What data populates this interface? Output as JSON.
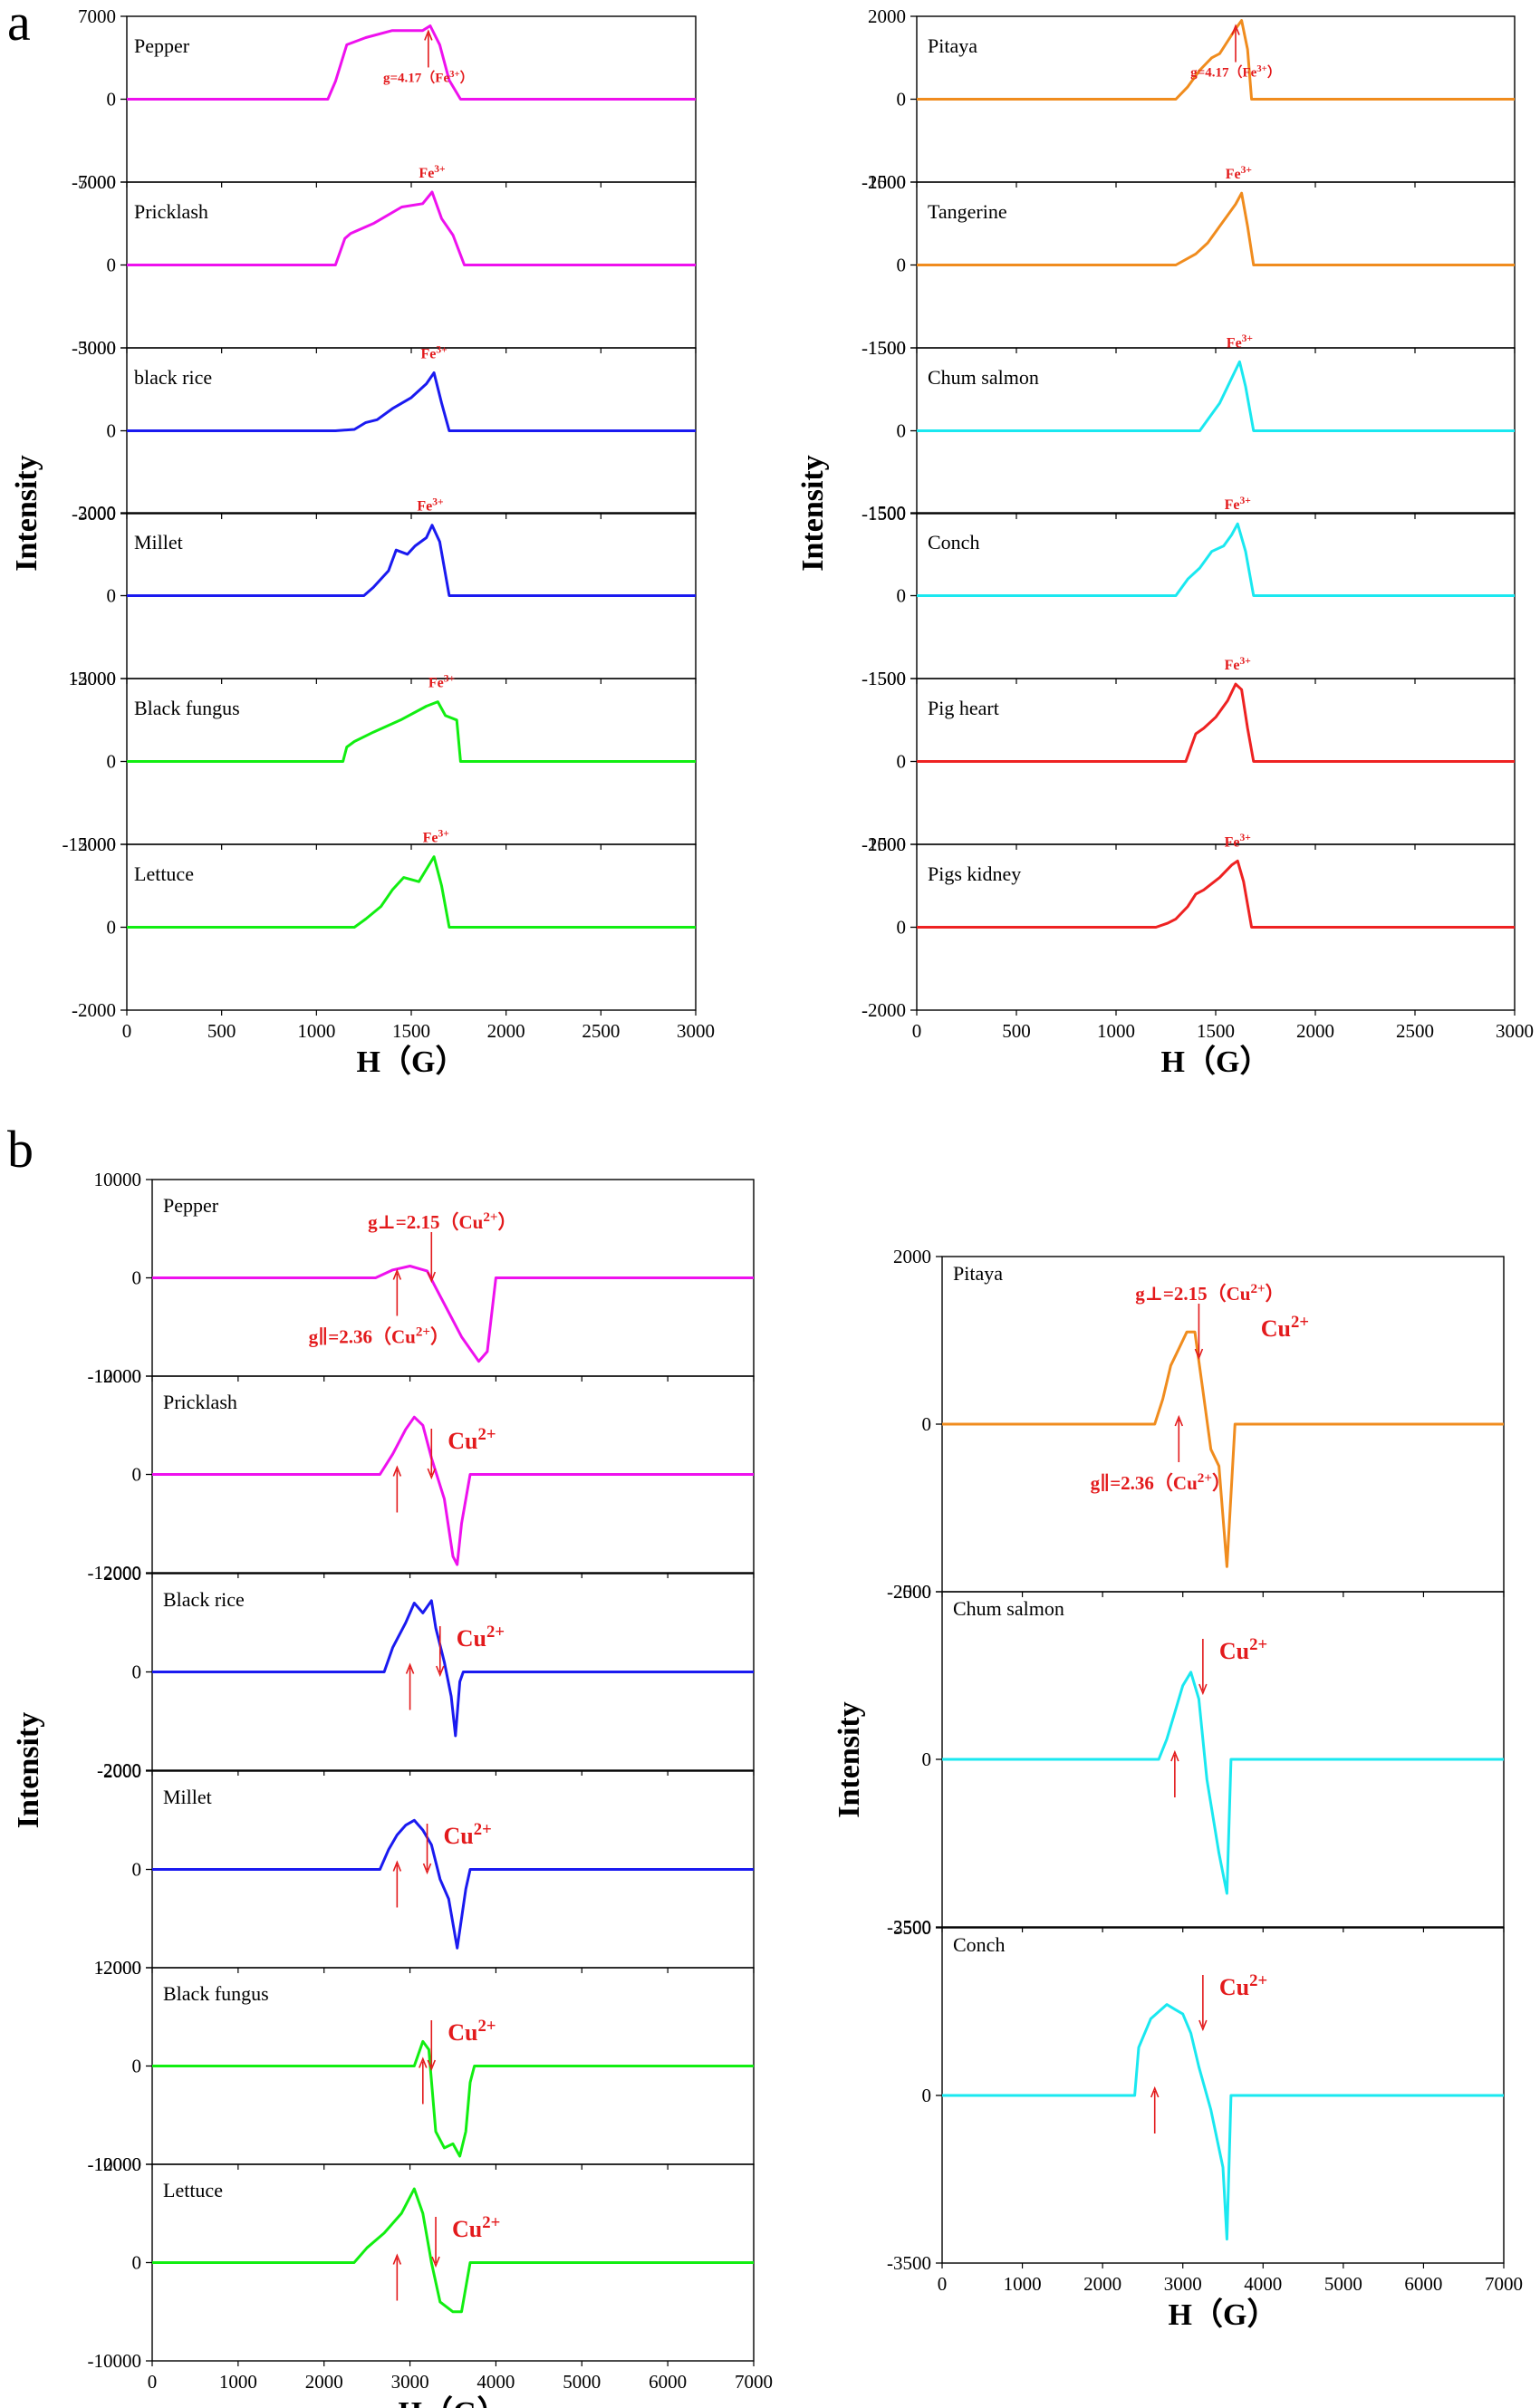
{
  "figure": {
    "panel_a_letter": "a",
    "panel_b_letter": "b"
  },
  "chart_data": [
    {
      "id": "a_left",
      "type": "line",
      "xlabel": "H（G）",
      "ylabel": "Intensity",
      "xlim": [
        0,
        3000
      ],
      "xticks": [
        0,
        500,
        1000,
        1500,
        2000,
        2500,
        3000
      ],
      "series": [
        {
          "name": "Pepper",
          "color": "#ee11ee",
          "ylim": [
            -7000,
            7000
          ],
          "yticks": [
            -7000,
            0,
            7000
          ],
          "x": [
            0,
            1060,
            1100,
            1160,
            1260,
            1400,
            1560,
            1600,
            1650,
            1700,
            1760,
            3000
          ],
          "y": [
            0,
            0,
            1500,
            4600,
            5200,
            5800,
            5800,
            6200,
            4600,
            1600,
            0,
            0
          ],
          "annotation": "g=4.17（Fe3+）",
          "arrow_x": 1590
        },
        {
          "name": "Pricklash",
          "color": "#ee11ee",
          "ylim": [
            -5000,
            5000
          ],
          "yticks": [
            -5000,
            0,
            5000
          ],
          "x": [
            0,
            1100,
            1150,
            1180,
            1300,
            1450,
            1560,
            1610,
            1660,
            1720,
            1780,
            3000
          ],
          "y": [
            0,
            0,
            1600,
            1900,
            2500,
            3500,
            3700,
            4400,
            2800,
            1800,
            0,
            0
          ],
          "annotation": "Fe3+",
          "arrow_x": 1610
        },
        {
          "name": "black rice",
          "color": "#1a1af0",
          "ylim": [
            -3000,
            3000
          ],
          "yticks": [
            -3000,
            0,
            3000
          ],
          "x": [
            0,
            1100,
            1200,
            1260,
            1320,
            1400,
            1500,
            1580,
            1620,
            1660,
            1700,
            3000
          ],
          "y": [
            0,
            0,
            50,
            300,
            400,
            800,
            1200,
            1700,
            2100,
            1000,
            0,
            0
          ],
          "annotation": "Fe3+",
          "arrow_x": 1620
        },
        {
          "name": "Millet",
          "color": "#1a1af0",
          "ylim": [
            -2000,
            2000
          ],
          "yticks": [
            -2000,
            0,
            2000
          ],
          "x": [
            0,
            1250,
            1300,
            1380,
            1420,
            1480,
            1520,
            1580,
            1610,
            1650,
            1700,
            3000
          ],
          "y": [
            0,
            0,
            200,
            600,
            1100,
            1000,
            1200,
            1400,
            1700,
            1300,
            0,
            0
          ],
          "annotation": "Fe3+",
          "arrow_x": 1600
        },
        {
          "name": "Black fungus",
          "color": "#11ee11",
          "ylim": [
            -15000,
            15000
          ],
          "yticks": [
            -15000,
            0,
            15000
          ],
          "x": [
            0,
            1140,
            1160,
            1200,
            1300,
            1450,
            1580,
            1640,
            1680,
            1740,
            1760,
            3000
          ],
          "y": [
            0,
            0,
            2600,
            3600,
            5300,
            7600,
            10000,
            10800,
            8300,
            7500,
            0,
            0
          ],
          "annotation": "Fe3+",
          "arrow_x": 1660
        },
        {
          "name": "Lettuce",
          "color": "#11ee11",
          "ylim": [
            -2000,
            2000
          ],
          "yticks": [
            -2000,
            0,
            2000
          ],
          "x": [
            0,
            1200,
            1260,
            1340,
            1400,
            1460,
            1540,
            1580,
            1620,
            1660,
            1700,
            3000
          ],
          "y": [
            0,
            0,
            200,
            500,
            900,
            1200,
            1100,
            1400,
            1700,
            1000,
            0,
            0
          ],
          "annotation": "Fe3+",
          "arrow_x": 1630
        }
      ]
    },
    {
      "id": "a_right",
      "type": "line",
      "xlabel": "H（G）",
      "ylabel": "Intensity",
      "xlim": [
        0,
        3000
      ],
      "xticks": [
        0,
        500,
        1000,
        1500,
        2000,
        2500,
        3000
      ],
      "series": [
        {
          "name": "Pitaya",
          "color": "#f08c1e",
          "ylim": [
            -2000,
            2000
          ],
          "yticks": [
            -2000,
            0,
            2000
          ],
          "x": [
            0,
            1300,
            1360,
            1420,
            1480,
            1520,
            1560,
            1600,
            1630,
            1660,
            1680,
            3000
          ],
          "y": [
            0,
            0,
            300,
            700,
            1000,
            1100,
            1400,
            1700,
            1900,
            1200,
            0,
            0
          ],
          "annotation": "g=4.17（Fe3+）",
          "arrow_x": 1600
        },
        {
          "name": "Tangerine",
          "color": "#f08c1e",
          "ylim": [
            -1500,
            1500
          ],
          "yticks": [
            -1500,
            0,
            1500
          ],
          "x": [
            0,
            1300,
            1400,
            1460,
            1520,
            1560,
            1600,
            1630,
            1660,
            1690,
            3000
          ],
          "y": [
            0,
            0,
            200,
            400,
            700,
            900,
            1100,
            1300,
            700,
            0,
            0
          ],
          "annotation": "Fe3+",
          "arrow_x": 1615
        },
        {
          "name": "Chum salmon",
          "color": "#1ae8f0",
          "ylim": [
            -1500,
            1500
          ],
          "yticks": [
            -1500,
            0,
            1500
          ],
          "x": [
            0,
            1420,
            1460,
            1520,
            1560,
            1600,
            1620,
            1650,
            1690,
            3000
          ],
          "y": [
            0,
            0,
            200,
            500,
            800,
            1100,
            1250,
            800,
            0,
            0
          ],
          "annotation": "Fe3+",
          "arrow_x": 1620
        },
        {
          "name": "Conch",
          "color": "#1ae8f0",
          "ylim": [
            -1500,
            1500
          ],
          "yticks": [
            -1500,
            0,
            1500
          ],
          "x": [
            0,
            1300,
            1360,
            1420,
            1480,
            1540,
            1580,
            1610,
            1650,
            1690,
            3000
          ],
          "y": [
            0,
            0,
            300,
            500,
            800,
            900,
            1100,
            1300,
            800,
            0,
            0
          ],
          "annotation": "Fe3+",
          "arrow_x": 1610
        },
        {
          "name": "Pig heart",
          "color": "#ee2222",
          "ylim": [
            -1500,
            1500
          ],
          "yticks": [
            -1500,
            0,
            1500
          ],
          "x": [
            0,
            1350,
            1400,
            1440,
            1500,
            1560,
            1600,
            1630,
            1660,
            1690,
            3000
          ],
          "y": [
            0,
            0,
            500,
            600,
            800,
            1100,
            1400,
            1300,
            600,
            0,
            0
          ],
          "annotation": "Fe3+",
          "arrow_x": 1610
        },
        {
          "name": "Pigs kidney",
          "color": "#ee2222",
          "ylim": [
            -2000,
            2000
          ],
          "yticks": [
            -2000,
            0,
            2000
          ],
          "x": [
            0,
            1200,
            1260,
            1300,
            1360,
            1400,
            1440,
            1520,
            1580,
            1610,
            1640,
            1680,
            3000
          ],
          "y": [
            0,
            0,
            100,
            200,
            500,
            800,
            900,
            1200,
            1500,
            1600,
            1100,
            0,
            0
          ],
          "annotation": "Fe3+",
          "arrow_x": 1610
        }
      ]
    },
    {
      "id": "b_left",
      "type": "line",
      "xlabel": "H（G）",
      "ylabel": "Intensity",
      "xlim": [
        0,
        7000
      ],
      "xticks": [
        0,
        1000,
        2000,
        3000,
        4000,
        5000,
        6000,
        7000
      ],
      "series": [
        {
          "name": "Pepper",
          "color": "#ee11ee",
          "ylim": [
            -10000,
            10000
          ],
          "yticks": [
            -10000,
            0,
            10000
          ],
          "x": [
            0,
            2600,
            2800,
            3000,
            3200,
            3300,
            3450,
            3600,
            3800,
            3900,
            4000,
            7000
          ],
          "y": [
            0,
            0,
            800,
            1200,
            700,
            -1000,
            -3500,
            -6000,
            -8500,
            -7500,
            0,
            0
          ],
          "annotation": "g⊥=2.15（Cu2+）",
          "annotation2": "g∥=2.36（Cu2+）",
          "arrow_x": 3250,
          "arrow2_x": 2850
        },
        {
          "name": "Pricklash",
          "color": "#ee11ee",
          "ylim": [
            -12000,
            12000
          ],
          "yticks": [
            -12000,
            0,
            12000
          ],
          "x": [
            0,
            2650,
            2800,
            2950,
            3050,
            3150,
            3250,
            3400,
            3500,
            3550,
            3600,
            3700,
            7000
          ],
          "y": [
            0,
            0,
            2500,
            5500,
            7000,
            6000,
            2000,
            -3000,
            -10000,
            -11000,
            -6000,
            0,
            0
          ],
          "annotation": "Cu2+",
          "arrow_x": 3250,
          "arrow2_x": 2850
        },
        {
          "name": "Black rice",
          "color": "#1a1af0",
          "ylim": [
            -2000,
            2000
          ],
          "yticks": [
            -2000,
            0,
            2000
          ],
          "x": [
            0,
            2700,
            2800,
            2950,
            3050,
            3150,
            3250,
            3300,
            3400,
            3480,
            3530,
            3580,
            3620,
            7000
          ],
          "y": [
            0,
            0,
            500,
            1000,
            1400,
            1200,
            1450,
            900,
            200,
            -500,
            -1300,
            -200,
            0,
            0
          ],
          "annotation": "Cu2+",
          "arrow_x": 3350,
          "arrow2_x": 3000
        },
        {
          "name": "Millet",
          "color": "#1a1af0",
          "ylim": [
            -2000,
            2000
          ],
          "yticks": [
            -2000,
            0,
            2000
          ],
          "x": [
            0,
            2650,
            2750,
            2850,
            2950,
            3050,
            3150,
            3250,
            3350,
            3450,
            3550,
            3650,
            3700,
            7000
          ],
          "y": [
            0,
            0,
            400,
            700,
            900,
            1000,
            800,
            500,
            -200,
            -600,
            -1600,
            -400,
            0,
            0
          ],
          "annotation": "Cu2+",
          "arrow_x": 3200,
          "arrow2_x": 2850
        },
        {
          "name": "Black fungus",
          "color": "#11ee11",
          "ylim": [
            -12000,
            12000
          ],
          "yticks": [
            -12000,
            0,
            12000
          ],
          "x": [
            0,
            3050,
            3150,
            3220,
            3300,
            3400,
            3500,
            3580,
            3650,
            3700,
            3750,
            7000
          ],
          "y": [
            0,
            0,
            3000,
            2000,
            -8000,
            -10000,
            -9500,
            -11000,
            -8000,
            -2000,
            0,
            0
          ],
          "annotation": "Cu2+",
          "arrow_x": 3250,
          "arrow2_x": 3150
        },
        {
          "name": "Lettuce",
          "color": "#11ee11",
          "ylim": [
            -10000,
            10000
          ],
          "yticks": [
            -10000,
            0,
            10000
          ],
          "x": [
            0,
            2350,
            2500,
            2700,
            2900,
            3050,
            3150,
            3250,
            3350,
            3500,
            3600,
            3700,
            7000
          ],
          "y": [
            0,
            0,
            1500,
            3000,
            5000,
            7500,
            5000,
            0,
            -4000,
            -5000,
            -5000,
            0,
            0
          ],
          "annotation": "Cu2+",
          "arrow_x": 3300,
          "arrow2_x": 2850
        }
      ]
    },
    {
      "id": "b_right",
      "type": "line",
      "xlabel": "H（G）",
      "ylabel": "Intensity",
      "xlim": [
        0,
        7000
      ],
      "xticks": [
        0,
        1000,
        2000,
        3000,
        4000,
        5000,
        6000,
        7000
      ],
      "series": [
        {
          "name": "Pitaya",
          "color": "#f08c1e",
          "ylim": [
            -2000,
            2000
          ],
          "yticks": [
            -2000,
            0,
            2000
          ],
          "x": [
            0,
            2650,
            2750,
            2850,
            2950,
            3050,
            3150,
            3250,
            3350,
            3450,
            3550,
            3650,
            7000
          ],
          "y": [
            0,
            0,
            300,
            700,
            900,
            1100,
            1100,
            400,
            -300,
            -500,
            -1700,
            0,
            0
          ],
          "annotation": "g⊥=2.15（Cu2+）",
          "annotation2": "g∥=2.36（Cu2+）",
          "extra_label": "Cu2+",
          "arrow_x": 3200,
          "arrow2_x": 2950
        },
        {
          "name": "Chum salmon",
          "color": "#1ae8f0",
          "ylim": [
            -2500,
            2500
          ],
          "yticks": [
            -2500,
            0,
            2500
          ],
          "x": [
            0,
            2700,
            2800,
            2900,
            3000,
            3100,
            3200,
            3300,
            3450,
            3550,
            3600,
            7000
          ],
          "y": [
            0,
            0,
            300,
            700,
            1100,
            1300,
            900,
            -300,
            -1400,
            -2000,
            0,
            0
          ],
          "annotation": "Cu2+",
          "arrow_x": 3250,
          "arrow2_x": 2900
        },
        {
          "name": "Conch",
          "color": "#1ae8f0",
          "ylim": [
            -3500,
            3500
          ],
          "yticks": [
            -3500,
            0,
            3500
          ],
          "x": [
            0,
            2400,
            2450,
            2600,
            2800,
            2900,
            3000,
            3100,
            3200,
            3350,
            3500,
            3550,
            3600,
            7000
          ],
          "y": [
            0,
            0,
            1000,
            1600,
            1900,
            1800,
            1700,
            1300,
            600,
            -300,
            -1500,
            -3000,
            0,
            0
          ],
          "annotation": "Cu2+",
          "arrow_x": 3250,
          "arrow2_x": 2650
        }
      ]
    }
  ]
}
